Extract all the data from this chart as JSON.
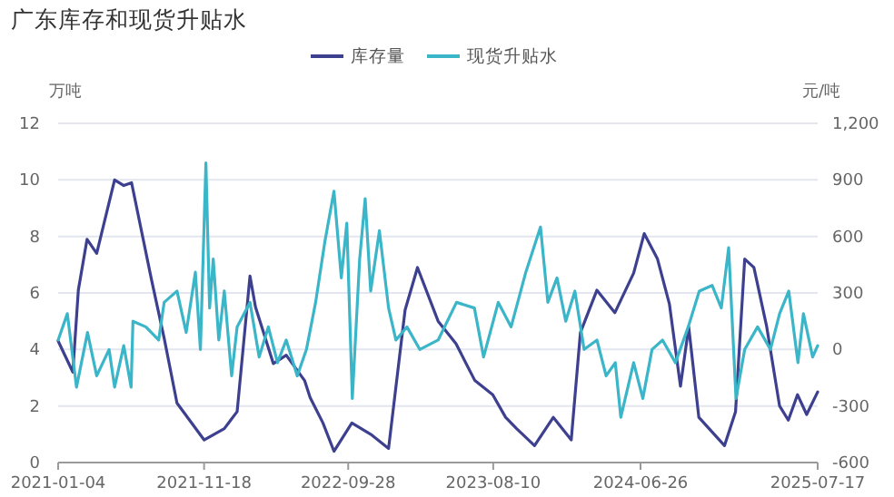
{
  "chart_data": {
    "type": "line",
    "title": "广东库存和现货升贴水",
    "ylabel": "万吨",
    "y2label": "元/吨",
    "xlim": [
      "2021-01-04",
      "2025-07-17"
    ],
    "xticks": [
      {
        "value": "2021-01-04",
        "label": "2021-01-04"
      },
      {
        "value": "2021-11-18",
        "label": "2021-11-18"
      },
      {
        "value": "2022-09-28",
        "label": "2022-09-28"
      },
      {
        "value": "2023-08-10",
        "label": "2023-08-10"
      },
      {
        "value": "2024-06-26",
        "label": "2024-06-26"
      },
      {
        "value": "2025-07-17",
        "label": "2025-07-17"
      }
    ],
    "ylim": [
      0,
      12
    ],
    "yticks": [
      0,
      2,
      4,
      6,
      8,
      10,
      12
    ],
    "y2lim": [
      -600,
      1200
    ],
    "y2ticks": [
      -600,
      -300,
      0,
      300,
      600,
      900,
      {
        "value": 1200,
        "label": "1,200"
      }
    ],
    "grid": "y",
    "legend": "top",
    "series": [
      {
        "name": "库存量",
        "color": "#3d3f8f",
        "x": [
          "2021-01-04",
          "2021-02-05",
          "2021-02-17",
          "2021-03-08",
          "2021-03-29",
          "2021-05-07",
          "2021-05-27",
          "2021-06-13",
          "2021-07-26",
          "2021-08-23",
          "2021-09-20",
          "2021-11-18",
          "2022-01-01",
          "2022-01-29",
          "2022-02-26",
          "2022-03-10",
          "2022-04-18",
          "2022-05-16",
          "2022-06-25",
          "2022-07-07",
          "2022-08-04",
          "2022-08-28",
          "2022-10-06",
          "2022-11-16",
          "2022-12-25",
          "2023-01-30",
          "2023-02-26",
          "2023-04-12",
          "2023-05-21",
          "2023-07-01",
          "2023-08-09",
          "2023-09-06",
          "2023-09-30",
          "2023-11-08",
          "2023-12-19",
          "2024-01-27",
          "2024-02-16",
          "2024-03-23",
          "2024-05-01",
          "2024-06-11",
          "2024-07-04",
          "2024-08-02",
          "2024-08-28",
          "2024-09-21",
          "2024-10-09",
          "2024-10-31",
          "2024-12-26",
          "2025-01-19",
          "2025-02-08",
          "2025-02-28",
          "2025-03-28",
          "2025-04-25",
          "2025-05-14",
          "2025-06-03",
          "2025-06-23",
          "2025-07-17"
        ],
        "values": [
          4.3,
          3.2,
          6.1,
          7.9,
          7.4,
          10.0,
          9.8,
          9.9,
          6.5,
          4.4,
          2.1,
          0.8,
          1.2,
          1.8,
          6.6,
          5.5,
          3.5,
          3.8,
          2.9,
          2.3,
          1.4,
          0.4,
          1.4,
          1.0,
          0.5,
          5.4,
          6.9,
          5.0,
          4.2,
          2.9,
          2.4,
          1.6,
          1.2,
          0.6,
          1.6,
          0.8,
          4.6,
          6.1,
          5.3,
          6.7,
          8.1,
          7.2,
          5.6,
          2.7,
          4.8,
          1.6,
          0.6,
          1.8,
          7.2,
          6.9,
          4.8,
          2.0,
          1.5,
          2.4,
          1.7,
          2.5
        ]
      },
      {
        "name": "现货升贴水",
        "color": "#3bb5c8",
        "axis": "y2",
        "x": [
          "2021-01-04",
          "2021-01-24",
          "2021-02-13",
          "2021-03-09",
          "2021-03-29",
          "2021-04-25",
          "2021-05-07",
          "2021-05-27",
          "2021-06-12",
          "2021-06-16",
          "2021-07-14",
          "2021-08-11",
          "2021-08-23",
          "2021-09-20",
          "2021-10-10",
          "2021-10-30",
          "2021-11-10",
          "2021-11-22",
          "2021-11-30",
          "2021-12-08",
          "2021-12-20",
          "2022-01-01",
          "2022-01-17",
          "2022-01-29",
          "2022-02-26",
          "2022-03-18",
          "2022-04-07",
          "2022-04-27",
          "2022-05-16",
          "2022-06-09",
          "2022-06-29",
          "2022-07-19",
          "2022-08-08",
          "2022-08-28",
          "2022-09-13",
          "2022-09-25",
          "2022-10-07",
          "2022-10-23",
          "2022-11-04",
          "2022-11-16",
          "2022-12-05",
          "2022-12-25",
          "2023-01-10",
          "2023-02-03",
          "2023-03-03",
          "2023-04-12",
          "2023-05-22",
          "2023-06-30",
          "2023-07-20",
          "2023-08-21",
          "2023-09-18",
          "2023-10-20",
          "2023-11-21",
          "2023-12-07",
          "2023-12-27",
          "2024-01-15",
          "2024-02-04",
          "2024-02-24",
          "2024-03-23",
          "2024-04-12",
          "2024-05-02",
          "2024-05-14",
          "2024-06-11",
          "2024-07-01",
          "2024-07-21",
          "2024-08-13",
          "2024-09-10",
          "2024-10-08",
          "2024-11-01",
          "2024-11-29",
          "2024-12-19",
          "2025-01-04",
          "2025-01-20",
          "2025-02-08",
          "2025-03-08",
          "2025-04-05",
          "2025-04-25",
          "2025-05-15",
          "2025-06-04",
          "2025-06-16",
          "2025-07-06",
          "2025-07-17"
        ],
        "values": [
          50,
          190,
          -200,
          90,
          -140,
          0,
          -200,
          20,
          -200,
          150,
          120,
          50,
          250,
          310,
          90,
          410,
          0,
          990,
          220,
          480,
          50,
          310,
          -140,
          120,
          250,
          -40,
          120,
          -70,
          50,
          -140,
          0,
          250,
          570,
          840,
          380,
          670,
          -260,
          480,
          800,
          310,
          630,
          220,
          50,
          120,
          0,
          50,
          250,
          220,
          -40,
          250,
          120,
          410,
          650,
          250,
          380,
          150,
          310,
          0,
          50,
          -140,
          -70,
          -360,
          -70,
          -260,
          0,
          50,
          -70,
          120,
          310,
          340,
          220,
          540,
          -260,
          0,
          120,
          0,
          190,
          310,
          -70,
          190,
          -40,
          20
        ]
      }
    ]
  }
}
